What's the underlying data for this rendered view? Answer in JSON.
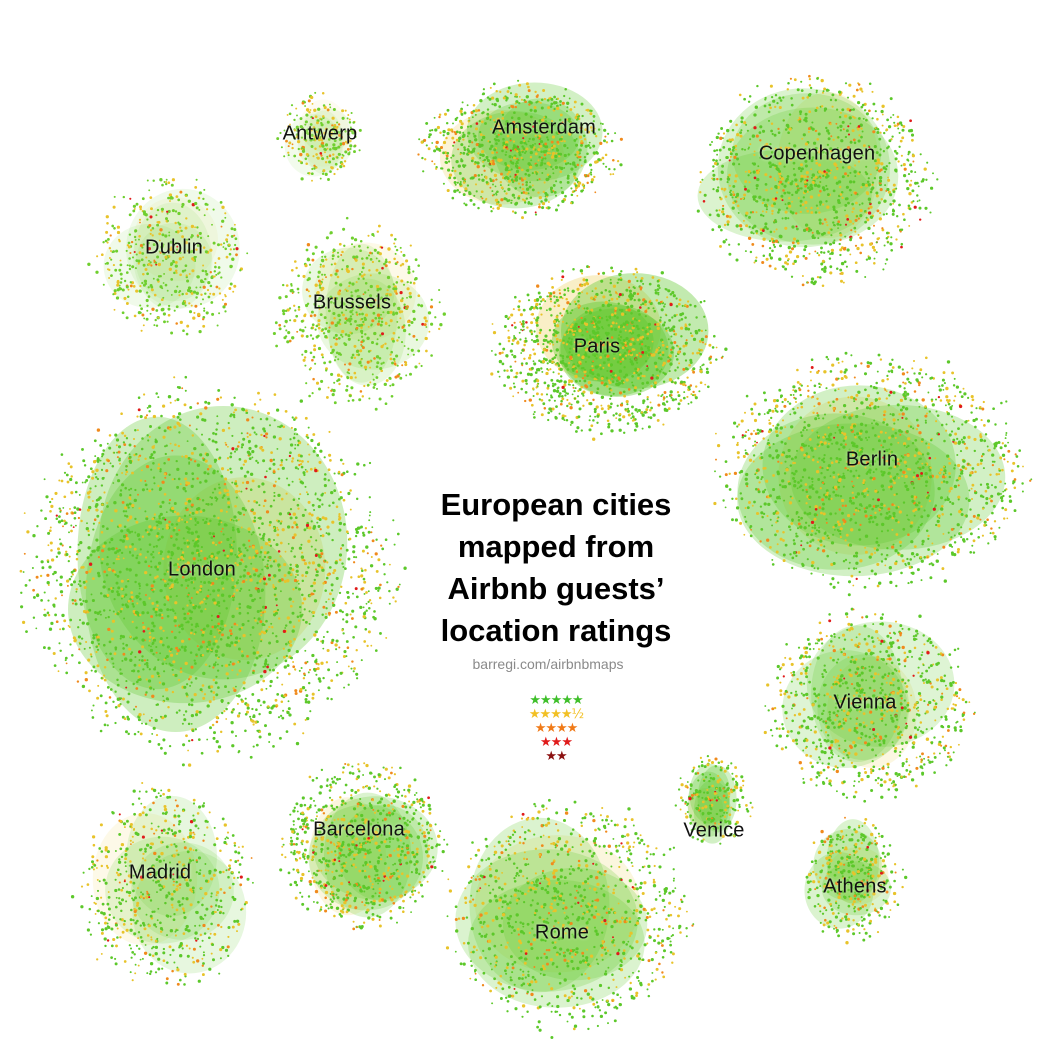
{
  "title_lines": [
    "European cities",
    "mapped from",
    "Airbnb guests’",
    "location ratings"
  ],
  "source": "barregi.com/airbnbmaps",
  "legend": [
    {
      "stars": "★★★★★",
      "rating": "5 stars",
      "color": "#3fbf2a"
    },
    {
      "stars": "★★★★½",
      "rating": "4.5 stars",
      "color": "#f2c024"
    },
    {
      "stars": "★★★★",
      "rating": "4 stars",
      "color": "#f07a18"
    },
    {
      "stars": "★★★",
      "rating": "3 stars",
      "color": "#e01b1b"
    },
    {
      "stars": "★★",
      "rating": "2 stars",
      "color": "#8b1010"
    }
  ],
  "cities": [
    {
      "name": "Antwerp",
      "colors": [
        "#6fcf2e",
        "#e8c32a",
        "#f08a1c"
      ]
    },
    {
      "name": "Amsterdam",
      "colors": [
        "#5cc82a",
        "#e8c32a",
        "#f08a1c"
      ]
    },
    {
      "name": "Copenhagen",
      "colors": [
        "#5cc82a",
        "#e8c32a",
        "#f08a1c"
      ]
    },
    {
      "name": "Dublin",
      "colors": [
        "#6fcf2e",
        "#e8c32a",
        "#f08a1c"
      ]
    },
    {
      "name": "Brussels",
      "colors": [
        "#6fcf2e",
        "#e8c32a",
        "#f08a1c"
      ]
    },
    {
      "name": "Paris",
      "colors": [
        "#5cc82a",
        "#e8c32a",
        "#f08a1c"
      ]
    },
    {
      "name": "Berlin",
      "colors": [
        "#5cc82a",
        "#e8c32a",
        "#f08a1c"
      ]
    },
    {
      "name": "London",
      "colors": [
        "#5cc82a",
        "#e8c32a",
        "#f08a1c"
      ]
    },
    {
      "name": "Vienna",
      "colors": [
        "#5cc82a",
        "#e8c32a",
        "#f08a1c"
      ]
    },
    {
      "name": "Venice",
      "colors": [
        "#5cc82a",
        "#e8c32a",
        "#f08a1c"
      ]
    },
    {
      "name": "Barcelona",
      "colors": [
        "#5cc82a",
        "#e8c32a",
        "#f08a1c"
      ]
    },
    {
      "name": "Madrid",
      "colors": [
        "#5cc82a",
        "#e8c32a",
        "#f08a1c"
      ]
    },
    {
      "name": "Athens",
      "colors": [
        "#5cc82a",
        "#e8c32a",
        "#f08a1c"
      ]
    },
    {
      "name": "Rome",
      "colors": [
        "#5cc82a",
        "#e8c32a",
        "#f08a1c"
      ]
    }
  ]
}
